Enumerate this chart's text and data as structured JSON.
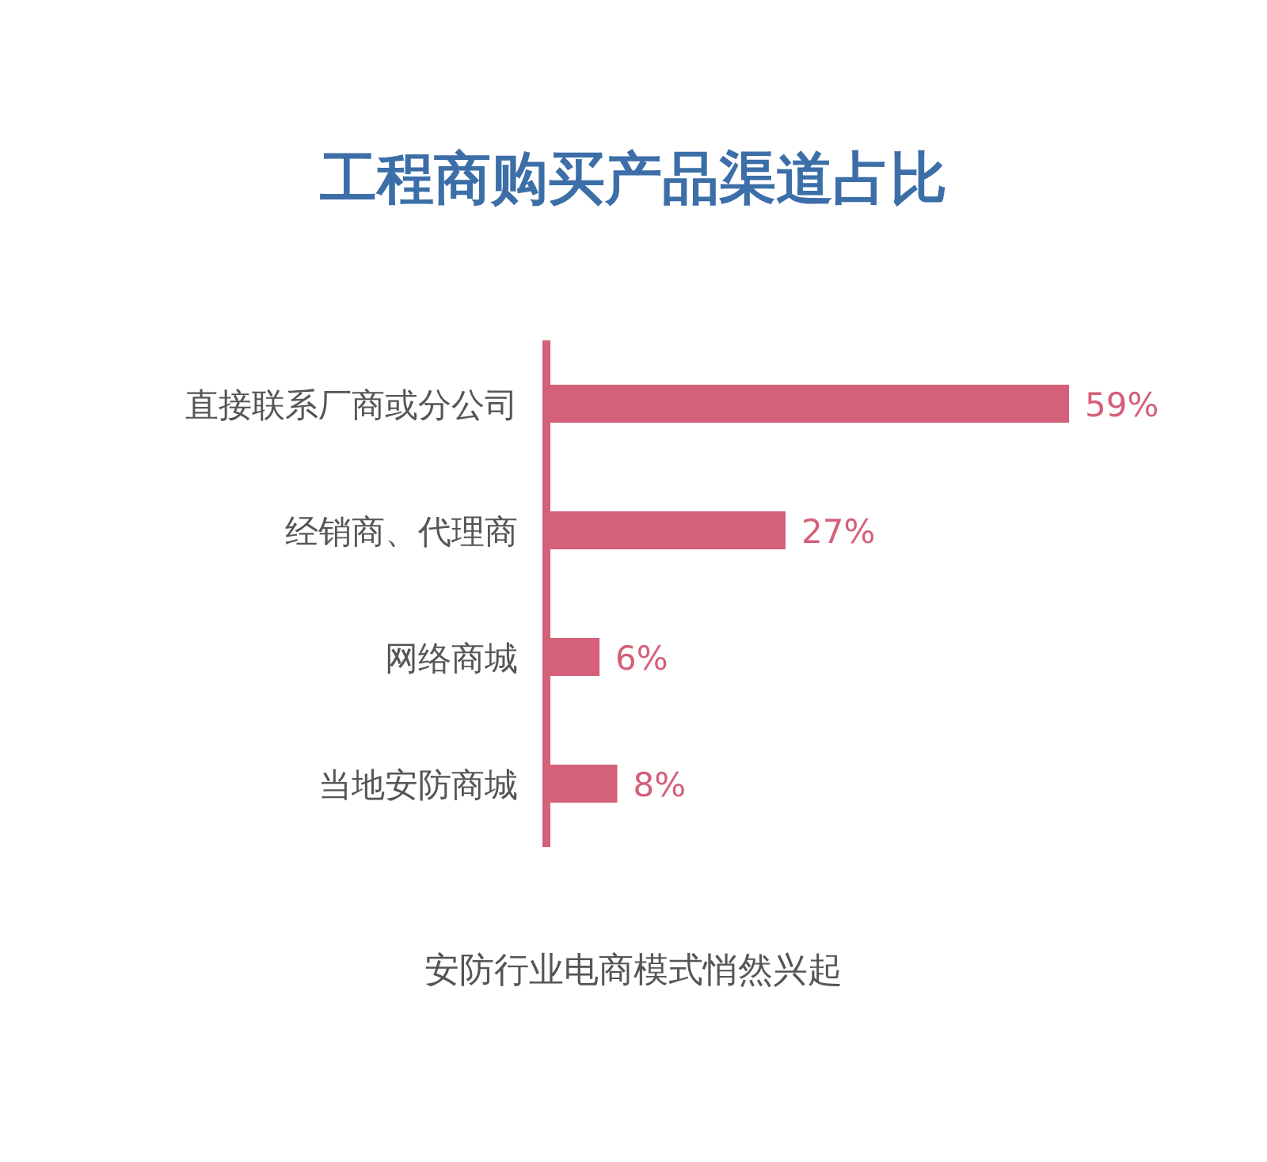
{
  "chart_data": {
    "type": "bar",
    "title": "工程商购买产品渠道占比",
    "orientation": "horizontal",
    "categories": [
      "直接联系厂商或分公司",
      "经销商、代理商",
      "网络商城",
      "当地安防商城"
    ],
    "values": [
      59,
      27,
      6,
      8
    ],
    "value_labels": [
      "59%",
      "27%",
      "6%",
      "8%"
    ],
    "color": "#d4607a",
    "annotations": [
      "安防行业电商模式悄然兴起"
    ]
  }
}
